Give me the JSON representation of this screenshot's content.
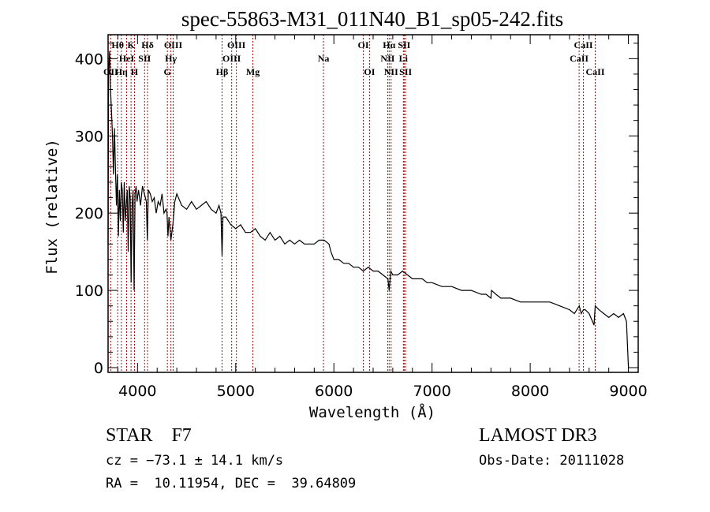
{
  "chart_data": {
    "type": "line",
    "title": "spec-55863-M31_011N40_B1_sp05-242.fits",
    "xlabel": "Wavelength (Å)",
    "ylabel": "Flux (relative)",
    "xlim": [
      3700,
      9100
    ],
    "ylim": [
      0,
      431
    ],
    "xticks": [
      4000,
      5000,
      6000,
      7000,
      8000,
      9000
    ],
    "xtick_labels": [
      "4000",
      "5000",
      "6000",
      "7000",
      "8000",
      "9000"
    ],
    "yticks": [
      0,
      100,
      200,
      300,
      400
    ],
    "ytick_labels": [
      "0",
      "100",
      "200",
      "300",
      "400"
    ],
    "grid": false,
    "line_color": "#000000",
    "marker_color": "#a01010",
    "series": [
      {
        "name": "flux",
        "x": [
          3700,
          3705,
          3715,
          3725,
          3735,
          3745,
          3755,
          3765,
          3775,
          3785,
          3795,
          3805,
          3815,
          3825,
          3835,
          3845,
          3855,
          3865,
          3875,
          3885,
          3895,
          3905,
          3915,
          3925,
          3935,
          3945,
          3955,
          3965,
          3975,
          3985,
          3995,
          4010,
          4030,
          4050,
          4070,
          4090,
          4100,
          4110,
          4130,
          4150,
          4170,
          4190,
          4210,
          4230,
          4250,
          4270,
          4290,
          4300,
          4310,
          4320,
          4340,
          4360,
          4380,
          4400,
          4450,
          4500,
          4550,
          4600,
          4650,
          4700,
          4750,
          4800,
          4830,
          4850,
          4861,
          4870,
          4900,
          4950,
          5000,
          5050,
          5100,
          5150,
          5200,
          5250,
          5300,
          5350,
          5400,
          5450,
          5500,
          5550,
          5600,
          5650,
          5700,
          5750,
          5800,
          5850,
          5900,
          5950,
          5970,
          6000,
          6050,
          6100,
          6150,
          6200,
          6250,
          6300,
          6350,
          6400,
          6450,
          6500,
          6550,
          6563,
          6580,
          6600,
          6650,
          6700,
          6750,
          6800,
          6850,
          6900,
          6950,
          7000,
          7100,
          7200,
          7300,
          7400,
          7500,
          7550,
          7600,
          7605,
          7650,
          7700,
          7800,
          7900,
          8000,
          8100,
          8200,
          8300,
          8400,
          8450,
          8500,
          8520,
          8542,
          8560,
          8600,
          8650,
          8662,
          8700,
          8750,
          8800,
          8850,
          8900,
          8950,
          8980,
          9000
        ],
        "y": [
          160,
          380,
          410,
          360,
          330,
          300,
          250,
          310,
          260,
          210,
          250,
          170,
          230,
          190,
          240,
          230,
          175,
          240,
          190,
          210,
          230,
          150,
          235,
          220,
          110,
          210,
          230,
          100,
          225,
          235,
          215,
          230,
          210,
          235,
          225,
          215,
          165,
          230,
          225,
          215,
          220,
          200,
          215,
          210,
          225,
          200,
          205,
          200,
          170,
          195,
          165,
          185,
          215,
          225,
          210,
          205,
          215,
          205,
          210,
          215,
          205,
          200,
          210,
          200,
          145,
          195,
          195,
          185,
          180,
          185,
          175,
          175,
          180,
          170,
          165,
          175,
          165,
          170,
          160,
          165,
          160,
          165,
          160,
          160,
          160,
          165,
          165,
          160,
          150,
          140,
          140,
          135,
          135,
          130,
          130,
          125,
          130,
          125,
          125,
          120,
          115,
          100,
          125,
          120,
          120,
          125,
          120,
          115,
          115,
          115,
          110,
          110,
          105,
          105,
          100,
          100,
          95,
          95,
          90,
          100,
          95,
          90,
          90,
          85,
          85,
          85,
          85,
          80,
          75,
          70,
          80,
          70,
          75,
          75,
          70,
          55,
          80,
          75,
          70,
          65,
          70,
          65,
          70,
          60,
          0
        ]
      }
    ],
    "line_markers": [
      {
        "name": "OII",
        "wavelength": 3727,
        "row": 2
      },
      {
        "name": "Hθ",
        "wavelength": 3798,
        "row": 0
      },
      {
        "name": "Hη",
        "wavelength": 3835,
        "row": 2
      },
      {
        "name": "HeI",
        "wavelength": 3889,
        "row": 1
      },
      {
        "name": "K",
        "wavelength": 3934,
        "row": 0
      },
      {
        "name": "H",
        "wavelength": 3969,
        "row": 2
      },
      {
        "name": "SII",
        "wavelength": 4072,
        "row": 1
      },
      {
        "name": "Hδ",
        "wavelength": 4102,
        "row": 0
      },
      {
        "name": "G",
        "wavelength": 4304,
        "row": 2
      },
      {
        "name": "Hγ",
        "wavelength": 4340,
        "row": 1
      },
      {
        "name": "OIII",
        "wavelength": 4363,
        "row": 0
      },
      {
        "name": "Hβ",
        "wavelength": 4861,
        "row": 2
      },
      {
        "name": "OIII",
        "wavelength": 4959,
        "row": 1
      },
      {
        "name": "OIII",
        "wavelength": 5007,
        "row": 0
      },
      {
        "name": "Mg",
        "wavelength": 5175,
        "row": 2
      },
      {
        "name": "Na",
        "wavelength": 5894,
        "row": 1
      },
      {
        "name": "OI",
        "wavelength": 6300,
        "row": 0
      },
      {
        "name": "OI",
        "wavelength": 6363,
        "row": 2
      },
      {
        "name": "NII",
        "wavelength": 6548,
        "row": 1
      },
      {
        "name": "Hα",
        "wavelength": 6563,
        "row": 0
      },
      {
        "name": "NII",
        "wavelength": 6583,
        "row": 2
      },
      {
        "name": "Li",
        "wavelength": 6708,
        "row": 1
      },
      {
        "name": "SII",
        "wavelength": 6716,
        "row": 0
      },
      {
        "name": "SII",
        "wavelength": 6731,
        "row": 2
      },
      {
        "name": "CaII",
        "wavelength": 8498,
        "row": 1
      },
      {
        "name": "CaII",
        "wavelength": 8542,
        "row": 0
      },
      {
        "name": "CaII",
        "wavelength": 8662,
        "row": 2
      }
    ]
  },
  "info": {
    "object_class": "STAR",
    "subclass": "F7",
    "cz_line": "cz = −73.1 ± 14.1 km/s",
    "coords_line": "RA =  10.11954, DEC =  39.64809",
    "survey": "LAMOST DR3",
    "obs_date": "Obs-Date: 20111028"
  }
}
